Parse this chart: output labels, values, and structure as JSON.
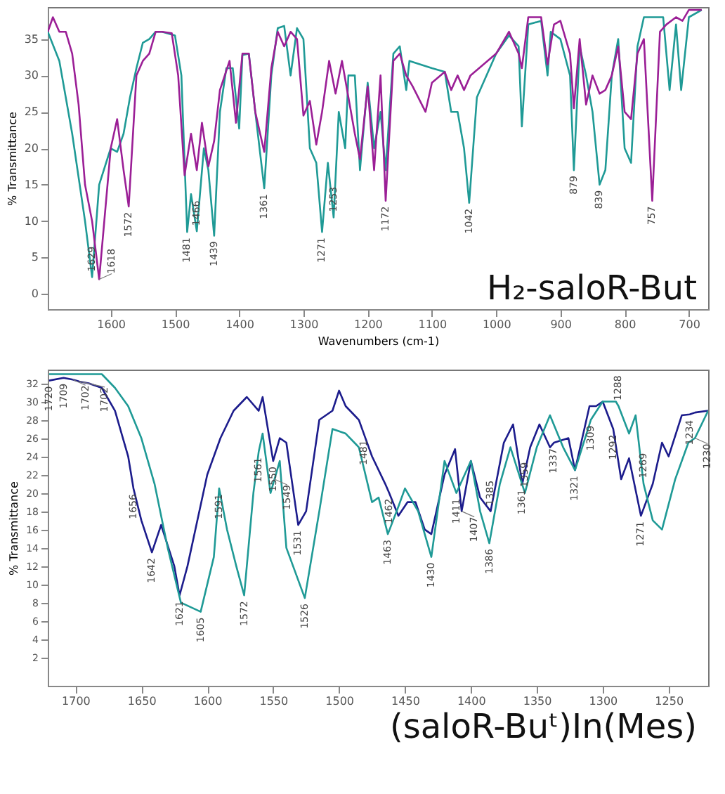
{
  "chart_data": [
    {
      "type": "line",
      "xlabel": "Wavenumbers (cm-1)",
      "ylabel": "% Transmittance",
      "xlim": [
        1698,
        670
      ],
      "ylim": [
        -2.1,
        39.4
      ],
      "xticks": [
        1600,
        1500,
        1400,
        1300,
        1200,
        1100,
        1000,
        900,
        800,
        700
      ],
      "yticks": [
        0,
        5,
        10,
        15,
        20,
        25,
        30,
        35
      ],
      "grid": false,
      "legend": false,
      "marker": "none",
      "line_style": "solid",
      "series": [
        {
          "color": "#1f9a96",
          "x": [
            1698,
            1680,
            1660,
            1640,
            1629,
            1618,
            1600,
            1590,
            1580,
            1570,
            1560,
            1550,
            1540,
            1530,
            1520,
            1500,
            1490,
            1481,
            1475,
            1466,
            1455,
            1448,
            1439,
            1430,
            1420,
            1410,
            1400,
            1395,
            1385,
            1375,
            1361,
            1350,
            1340,
            1330,
            1320,
            1310,
            1300,
            1290,
            1280,
            1271,
            1262,
            1253,
            1245,
            1235,
            1230,
            1220,
            1212,
            1200,
            1190,
            1180,
            1172,
            1160,
            1150,
            1140,
            1135,
            1100,
            1080,
            1070,
            1060,
            1050,
            1042,
            1030,
            1000,
            980,
            965,
            960,
            950,
            930,
            920,
            915,
            900,
            885,
            879,
            870,
            860,
            850,
            839,
            830,
            820,
            810,
            800,
            790,
            780,
            770,
            757,
            740,
            730,
            720,
            712,
            700,
            680
          ],
          "values": [
            36,
            32,
            22,
            10,
            2.3,
            15,
            20,
            19.5,
            22,
            27,
            31,
            34.5,
            35,
            36,
            36,
            35.5,
            30,
            8.5,
            13.7,
            8.6,
            20,
            17,
            8,
            25,
            31,
            31,
            22.7,
            32.8,
            33,
            25,
            14.5,
            30,
            36.5,
            36.8,
            30,
            36.5,
            35,
            20,
            18,
            8.5,
            18,
            10.5,
            25,
            20,
            30,
            30,
            17,
            29,
            20,
            25,
            17,
            33,
            34,
            28,
            32,
            31,
            30.5,
            25,
            25,
            20,
            12.5,
            27,
            33,
            35.5,
            34,
            23,
            37,
            37.5,
            30,
            36,
            35,
            30,
            17,
            34,
            30,
            25,
            15,
            17,
            30,
            35,
            20,
            18,
            34,
            38,
            38,
            38,
            28,
            37,
            28,
            38,
            39
          ]
        },
        {
          "color": "#9b1f96",
          "x": [
            1698,
            1690,
            1680,
            1670,
            1660,
            1650,
            1640,
            1629,
            1618,
            1610,
            1600,
            1590,
            1580,
            1572,
            1560,
            1550,
            1540,
            1530,
            1520,
            1505,
            1495,
            1485,
            1475,
            1466,
            1458,
            1448,
            1439,
            1430,
            1415,
            1405,
            1395,
            1385,
            1375,
            1361,
            1350,
            1340,
            1330,
            1320,
            1310,
            1300,
            1290,
            1280,
            1271,
            1260,
            1250,
            1240,
            1230,
            1220,
            1212,
            1200,
            1190,
            1180,
            1172,
            1160,
            1150,
            1140,
            1130,
            1110,
            1100,
            1080,
            1070,
            1060,
            1050,
            1040,
            1000,
            980,
            965,
            960,
            950,
            930,
            920,
            910,
            900,
            885,
            879,
            870,
            860,
            850,
            839,
            830,
            820,
            810,
            800,
            790,
            780,
            770,
            757,
            745,
            735,
            720,
            710,
            700,
            680
          ],
          "values": [
            36,
            38,
            36,
            36,
            33,
            26,
            15,
            10,
            2,
            10,
            20,
            24,
            17,
            12,
            30,
            32,
            33,
            36,
            36,
            35.8,
            30,
            16.3,
            22,
            17,
            23.5,
            17.5,
            21,
            28,
            32,
            23.5,
            33,
            33,
            25,
            19.5,
            31,
            36,
            34,
            36,
            35,
            24.5,
            26.5,
            20.5,
            25,
            32,
            27.5,
            32,
            27,
            22,
            18.5,
            28.5,
            17,
            30,
            12.8,
            32,
            33,
            30,
            28.5,
            25,
            29,
            30.5,
            28,
            30,
            28,
            30,
            33,
            36,
            33,
            31,
            38,
            38,
            31.5,
            37,
            37.5,
            33,
            25.5,
            35,
            26,
            30,
            27.5,
            28,
            30,
            34,
            25,
            24,
            33,
            35,
            12.8,
            36,
            37,
            38,
            37.5,
            39,
            39
          ]
        }
      ],
      "annotations": [
        "H₂-saloR-But",
        {
          "text": "1629",
          "x": 1629,
          "y": 2.3
        },
        {
          "text": "1618",
          "x": 1618,
          "y": 2
        },
        {
          "text": "1572",
          "x": 1572,
          "y": 12
        },
        {
          "text": "1481",
          "x": 1481,
          "y": 8.5
        },
        {
          "text": "1466",
          "x": 1466,
          "y": 8.6
        },
        {
          "text": "1439",
          "x": 1439,
          "y": 8
        },
        {
          "text": "1361",
          "x": 1361,
          "y": 14.5
        },
        {
          "text": "1271",
          "x": 1271,
          "y": 8.5
        },
        {
          "text": "1253",
          "x": 1253,
          "y": 10.5
        },
        {
          "text": "1172",
          "x": 1172,
          "y": 12.8
        },
        {
          "text": "1042",
          "x": 1042,
          "y": 12.5
        },
        {
          "text": "879",
          "x": 879,
          "y": 17
        },
        {
          "text": "839",
          "x": 839,
          "y": 15
        },
        {
          "text": "757",
          "x": 757,
          "y": 12.8
        }
      ]
    },
    {
      "type": "line",
      "ylabel": "% Transmittance",
      "xlim": [
        1721,
        1220
      ],
      "ylim": [
        -1.1,
        33.5
      ],
      "xticks": [
        1700,
        1650,
        1600,
        1550,
        1500,
        1450,
        1400,
        1350,
        1300,
        1250
      ],
      "yticks": [
        2,
        4,
        6,
        8,
        10,
        12,
        14,
        16,
        18,
        20,
        22,
        24,
        26,
        28,
        30,
        32
      ],
      "grid": false,
      "legend": false,
      "marker": "none",
      "line_style": "solid",
      "series": [
        {
          "color": "#1c1c8c",
          "x": [
            1720,
            1709,
            1702,
            1697,
            1690,
            1680,
            1670,
            1660,
            1656,
            1650,
            1642,
            1635,
            1625,
            1621,
            1615,
            1600,
            1590,
            1580,
            1570,
            1561,
            1558,
            1550,
            1545,
            1540,
            1531,
            1525,
            1515,
            1505,
            1500,
            1495,
            1485,
            1481,
            1475,
            1465,
            1462,
            1455,
            1448,
            1442,
            1435,
            1430,
            1420,
            1412,
            1407,
            1400,
            1393,
            1385,
            1375,
            1368,
            1361,
            1355,
            1348,
            1340,
            1337,
            1326,
            1321,
            1310,
            1305,
            1300,
            1292,
            1286,
            1280,
            1271,
            1262,
            1255,
            1250,
            1240,
            1234,
            1230,
            1220
          ],
          "values": [
            32.3,
            32.6,
            32.4,
            32.2,
            32,
            31.5,
            29,
            24,
            20.5,
            17,
            13.5,
            16.5,
            12,
            8.8,
            12,
            22,
            26,
            29,
            30.5,
            29,
            30.5,
            23.5,
            26,
            25.5,
            16.5,
            18,
            28,
            29,
            31.2,
            29.5,
            28,
            26.4,
            24,
            21,
            20,
            17.5,
            19,
            19,
            16,
            15.5,
            22,
            24.8,
            18,
            23.5,
            19.5,
            18,
            25.5,
            27.5,
            21,
            25,
            27.5,
            25,
            25.5,
            26,
            22.5,
            29.5,
            29.5,
            30,
            27,
            21.5,
            23.8,
            17.5,
            21,
            25.5,
            24,
            28.5,
            28.6,
            28.8,
            29
          ]
        },
        {
          "color": "#1f9a96",
          "x": [
            1720,
            1702,
            1680,
            1670,
            1660,
            1650,
            1640,
            1630,
            1620,
            1605,
            1595,
            1591,
            1585,
            1578,
            1572,
            1565,
            1561,
            1558,
            1552,
            1549,
            1545,
            1540,
            1526,
            1515,
            1505,
            1495,
            1485,
            1475,
            1470,
            1463,
            1455,
            1450,
            1440,
            1430,
            1420,
            1411,
            1400,
            1393,
            1386,
            1378,
            1370,
            1359,
            1350,
            1340,
            1330,
            1321,
            1309,
            1300,
            1290,
            1288,
            1280,
            1275,
            1269,
            1262,
            1255,
            1245,
            1235,
            1230,
            1220
          ],
          "values": [
            33,
            33,
            33,
            31.5,
            29.5,
            26,
            21,
            14,
            8,
            7,
            13,
            20.5,
            16,
            12,
            8.8,
            20,
            24.5,
            26.5,
            20,
            21.5,
            23.5,
            14,
            8.5,
            18,
            27,
            26.5,
            25,
            19,
            19.5,
            15.5,
            18.5,
            20.5,
            18,
            13,
            23.5,
            20,
            23.5,
            18,
            14.5,
            21,
            25,
            20,
            25,
            28.5,
            25,
            22.5,
            28,
            30,
            30,
            29.5,
            26.5,
            28.5,
            21,
            17,
            16,
            21.5,
            25.5,
            26,
            29
          ]
        }
      ],
      "annotations": [
        "(saloR-Buᵗ)In(Mes)",
        {
          "text": "1720",
          "x": 1720,
          "y": 32.3
        },
        {
          "text": "1709",
          "x": 1709,
          "y": 32.6
        },
        {
          "text": "1702",
          "x": 1702,
          "y": 32.4
        },
        {
          "text": "1702",
          "x": 1697,
          "y": 32.2
        },
        {
          "text": "1656",
          "x": 1656,
          "y": 20.5
        },
        {
          "text": "1642",
          "x": 1642,
          "y": 13.5
        },
        {
          "text": "1621",
          "x": 1621,
          "y": 8.8
        },
        {
          "text": "1605",
          "x": 1605,
          "y": 7
        },
        {
          "text": "1591",
          "x": 1591,
          "y": 20.5
        },
        {
          "text": "1572",
          "x": 1572,
          "y": 8.8
        },
        {
          "text": "1561",
          "x": 1561,
          "y": 24.5
        },
        {
          "text": "1550",
          "x": 1550,
          "y": 23.5
        },
        {
          "text": "1549",
          "x": 1549,
          "y": 21.5
        },
        {
          "text": "1531",
          "x": 1531,
          "y": 16.5
        },
        {
          "text": "1526",
          "x": 1526,
          "y": 8.5
        },
        {
          "text": "1481",
          "x": 1481,
          "y": 26.4
        },
        {
          "text": "1463",
          "x": 1463,
          "y": 15.5
        },
        {
          "text": "1462",
          "x": 1462,
          "y": 20
        },
        {
          "text": "1430",
          "x": 1430,
          "y": 13
        },
        {
          "text": "1411",
          "x": 1411,
          "y": 20
        },
        {
          "text": "1407",
          "x": 1407,
          "y": 18
        },
        {
          "text": "1386",
          "x": 1386,
          "y": 14.5
        },
        {
          "text": "1385",
          "x": 1385,
          "y": 18
        },
        {
          "text": "1361",
          "x": 1361,
          "y": 21
        },
        {
          "text": "1359",
          "x": 1359,
          "y": 20
        },
        {
          "text": "1337",
          "x": 1337,
          "y": 25.5
        },
        {
          "text": "1309",
          "x": 1309,
          "y": 28
        },
        {
          "text": "1321",
          "x": 1321,
          "y": 22.5
        },
        {
          "text": "1292",
          "x": 1292,
          "y": 27
        },
        {
          "text": "1288",
          "x": 1288,
          "y": 29.5
        },
        {
          "text": "1271",
          "x": 1271,
          "y": 17.5
        },
        {
          "text": "1269",
          "x": 1269,
          "y": 21
        },
        {
          "text": "1234",
          "x": 1234,
          "y": 28.6
        },
        {
          "text": "1230",
          "x": 1230,
          "y": 26
        }
      ]
    }
  ]
}
